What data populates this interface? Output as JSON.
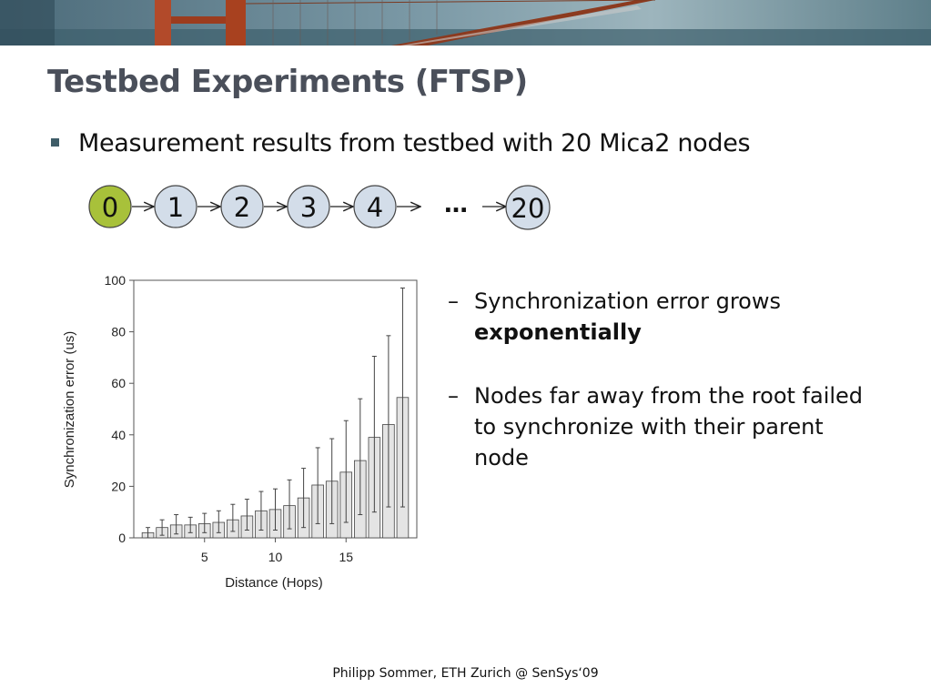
{
  "slide": {
    "title": "Testbed Experiments (FTSP)",
    "bullet": "Measurement results from testbed with 20 Mica2 nodes",
    "chain": {
      "nodes": [
        "0",
        "1",
        "2",
        "3",
        "4"
      ],
      "ellipsis": "…",
      "last_node": "20",
      "root_color": "#a8c13a",
      "node_color": "#d3dde9"
    },
    "sub_bullets": [
      {
        "dash": "–",
        "text": "Synchronization error grows",
        "bold": "exponentially"
      },
      {
        "dash": "–",
        "text": "Nodes far away from the root failed to synchronize with their parent node"
      }
    ],
    "footer": "Philipp Sommer, ETH Zurich @ SenSys‘09"
  },
  "chart_data": {
    "type": "bar",
    "xlabel": "Distance (Hops)",
    "ylabel": "Synchronization error (us)",
    "ylim": [
      0,
      100
    ],
    "xlim": [
      0,
      20
    ],
    "yticks": [
      0,
      20,
      40,
      60,
      80,
      100
    ],
    "xticks": [
      5,
      10,
      15
    ],
    "x": [
      1,
      2,
      3,
      4,
      5,
      6,
      7,
      8,
      9,
      10,
      11,
      12,
      13,
      14,
      15,
      16,
      17,
      18,
      19
    ],
    "values": [
      2,
      4,
      5,
      5,
      5.5,
      6,
      7,
      8.5,
      10.5,
      11,
      12.5,
      15.5,
      20.5,
      22,
      25.5,
      30,
      39,
      44,
      54.5
    ],
    "error_upper": [
      4,
      7,
      9,
      8,
      9.5,
      10.5,
      13,
      15,
      18,
      19,
      22.5,
      27,
      35,
      38.5,
      45.5,
      54,
      70.5,
      78.5,
      97
    ],
    "error_lower": [
      0,
      1,
      1.5,
      2,
      2,
      2,
      2.5,
      3,
      3,
      3,
      3.5,
      4,
      5.5,
      5.5,
      6,
      9,
      10,
      12,
      12
    ],
    "bar_color": "#e4e4e4"
  }
}
